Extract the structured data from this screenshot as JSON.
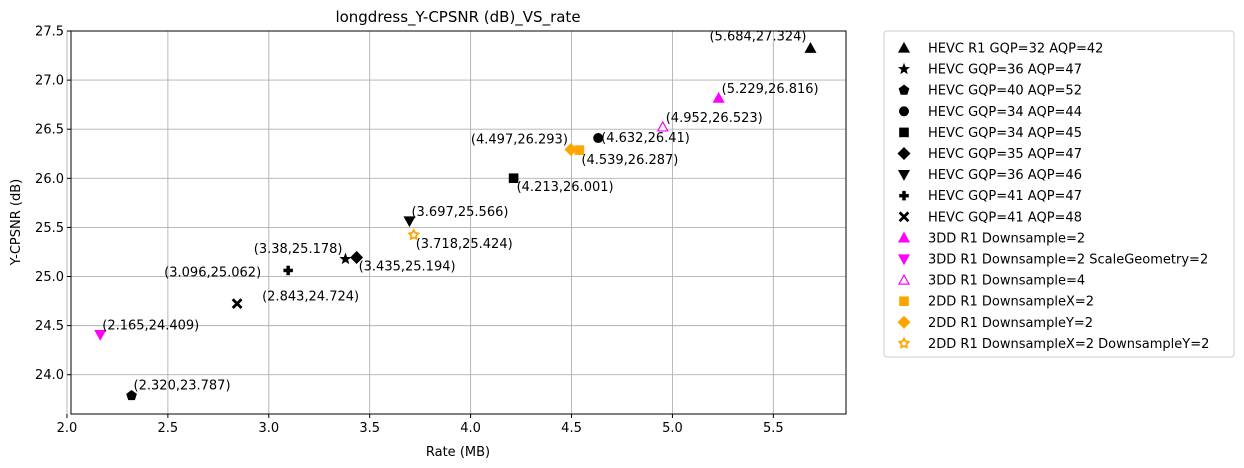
{
  "chart_data": {
    "type": "scatter",
    "title": "longdress_Y-CPSNR (dB)_VS_rate",
    "xlabel": "Rate (MB)",
    "ylabel": "Y-CPSNR (dB)",
    "xlim": [
      2.02,
      5.86
    ],
    "ylim": [
      23.6,
      27.5
    ],
    "xticks": [
      "2.0",
      "2.5",
      "3.0",
      "3.5",
      "4.0",
      "4.5",
      "5.0",
      "5.5"
    ],
    "xtick_values": [
      2.0,
      2.5,
      3.0,
      3.5,
      4.0,
      4.5,
      5.0,
      5.5
    ],
    "yticks": [
      "24.0",
      "24.5",
      "25.0",
      "25.5",
      "26.0",
      "26.5",
      "27.0",
      "27.5"
    ],
    "ytick_values": [
      24.0,
      24.5,
      25.0,
      25.5,
      26.0,
      26.5,
      27.0,
      27.5
    ],
    "grid": true,
    "legend_position": "outside-right",
    "series": [
      {
        "name": "HEVC R1 GQP=32 AQP=42",
        "marker": "triangle-up",
        "color": "#000000",
        "filled": true,
        "x": 5.684,
        "y": 27.324,
        "label": "(5.684,27.324)",
        "label_anchor": "end",
        "label_dx": -4,
        "label_dy": -8
      },
      {
        "name": "HEVC GQP=36 AQP=47",
        "marker": "star",
        "color": "#000000",
        "filled": true,
        "x": 3.38,
        "y": 25.178,
        "label": "(3.38,25.178)",
        "label_anchor": "end",
        "label_dx": -3,
        "label_dy": -6
      },
      {
        "name": "HEVC GQP=40 AQP=52",
        "marker": "pentagon",
        "color": "#000000",
        "filled": true,
        "x": 2.32,
        "y": 23.787,
        "label": "(2.320,23.787)",
        "label_anchor": "start",
        "label_dx": 2,
        "label_dy": -6
      },
      {
        "name": "HEVC GQP=34 AQP=44",
        "marker": "circle",
        "color": "#000000",
        "filled": true,
        "x": 4.632,
        "y": 26.41,
        "label": "(4.632,26.41)",
        "label_anchor": "start",
        "label_dx": 3,
        "label_dy": 4
      },
      {
        "name": "HEVC GQP=34 AQP=45",
        "marker": "square",
        "color": "#000000",
        "filled": true,
        "x": 4.213,
        "y": 26.001,
        "label": "(4.213,26.001)",
        "label_anchor": "start",
        "label_dx": 3,
        "label_dy": 13
      },
      {
        "name": "HEVC GQP=35 AQP=47",
        "marker": "diamond",
        "color": "#000000",
        "filled": true,
        "x": 3.435,
        "y": 25.194,
        "label": "(3.435,25.194)",
        "label_anchor": "start",
        "label_dx": 2,
        "label_dy": 13
      },
      {
        "name": "HEVC GQP=36 AQP=46",
        "marker": "triangle-down",
        "color": "#000000",
        "filled": true,
        "x": 3.697,
        "y": 25.566,
        "label": "(3.697,25.566)",
        "label_anchor": "start",
        "label_dx": 2,
        "label_dy": -5
      },
      {
        "name": "HEVC GQP=41 AQP=47",
        "marker": "plus",
        "color": "#000000",
        "filled": true,
        "x": 3.096,
        "y": 25.062,
        "label": "(3.096,25.062)",
        "label_anchor": "end",
        "label_dx": -27,
        "label_dy": 6
      },
      {
        "name": "HEVC GQP=41 AQP=48",
        "marker": "x",
        "color": "#000000",
        "filled": true,
        "x": 2.843,
        "y": 24.724,
        "label": "(2.843,24.724)",
        "label_anchor": "start",
        "label_dx": 25,
        "label_dy": -3
      },
      {
        "name": "3DD R1 Downsample=2",
        "marker": "triangle-up",
        "color": "#ff00ff",
        "filled": true,
        "x": 5.229,
        "y": 26.816,
        "label": "(5.229,26.816)",
        "label_anchor": "start",
        "label_dx": 3,
        "label_dy": -5
      },
      {
        "name": "3DD R1 Downsample=2 ScaleGeometry=2",
        "marker": "triangle-down",
        "color": "#ff00ff",
        "filled": true,
        "x": 2.165,
        "y": 24.409,
        "label": "(2.165,24.409)",
        "label_anchor": "start",
        "label_dx": 2,
        "label_dy": -5
      },
      {
        "name": "3DD R1 Downsample=4",
        "marker": "triangle-up",
        "color": "#ff00ff",
        "filled": false,
        "x": 4.952,
        "y": 26.523,
        "label": "(4.952,26.523)",
        "label_anchor": "start",
        "label_dx": 3,
        "label_dy": -5
      },
      {
        "name": "2DD R1 DownsampleX=2",
        "marker": "square",
        "color": "#ffa500",
        "filled": true,
        "x": 4.539,
        "y": 26.287,
        "label": "(4.539,26.287)",
        "label_anchor": "start",
        "label_dx": 2,
        "label_dy": 14
      },
      {
        "name": "2DD R1 DownsampleY=2",
        "marker": "diamond",
        "color": "#ffa500",
        "filled": true,
        "x": 4.497,
        "y": 26.293,
        "label": "(4.497,26.293)",
        "label_anchor": "end",
        "label_dx": -3,
        "label_dy": -6
      },
      {
        "name": "2DD R1 DownsampleX=2 DownsampleY=2",
        "marker": "star-open",
        "color": "#ffa500",
        "filled": true,
        "x": 3.718,
        "y": 25.424,
        "label": "(3.718,25.424)",
        "label_anchor": "start",
        "label_dx": 2,
        "label_dy": 13
      }
    ]
  }
}
